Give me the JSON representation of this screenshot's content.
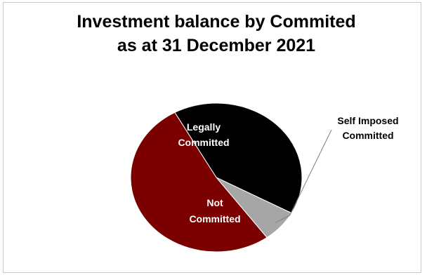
{
  "chart_data": {
    "type": "pie",
    "title_line1": "Investment balance by Commited",
    "title_line2": "as at 31 December 2021",
    "slices": [
      {
        "name": "Legally Committed",
        "label_lines": [
          "Legally",
          "Committed"
        ],
        "value": 41,
        "color": "#000000",
        "label_color": "#ffffff"
      },
      {
        "name": "Self Imposed Committed",
        "label_lines": [
          "Self Imposed",
          "Committed"
        ],
        "value": 7,
        "color": "#a6a6a6",
        "label_color": "#000000"
      },
      {
        "name": "Not Committed",
        "label_lines": [
          "Not",
          "Committed"
        ],
        "value": 52,
        "color": "#7b0000",
        "label_color": "#ffffff"
      }
    ],
    "start_angle_deg": 119
  }
}
